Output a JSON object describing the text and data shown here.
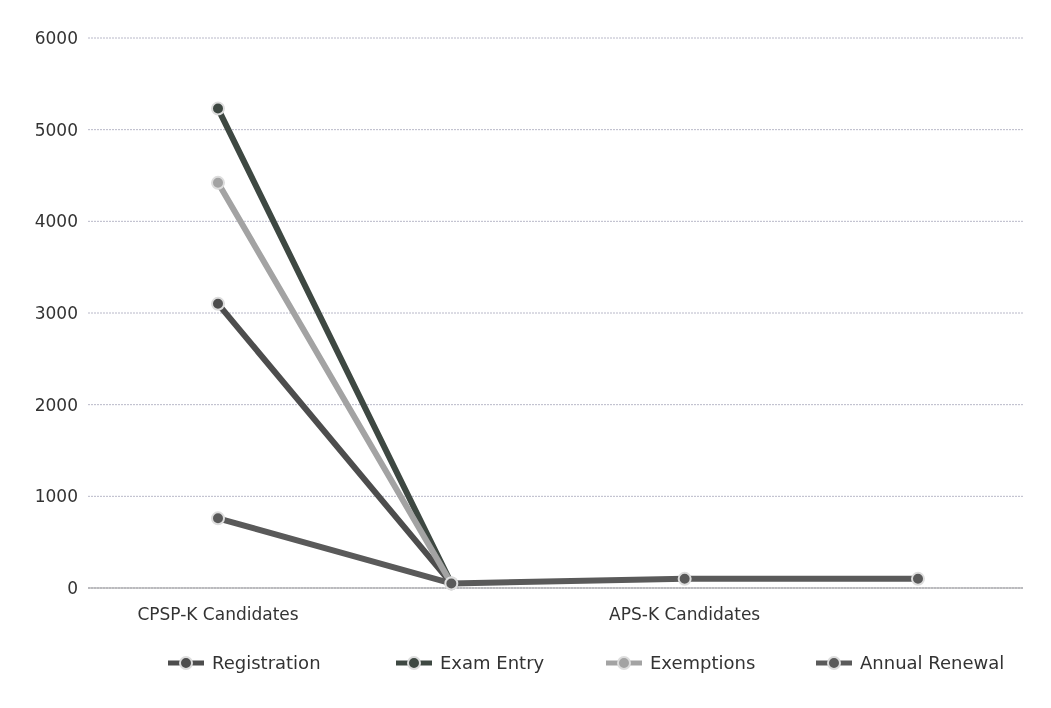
{
  "chart_data": {
    "type": "line",
    "categories": [
      "CPSP-K Candidates",
      null,
      "APS-K Candidates",
      null
    ],
    "series": [
      {
        "name": "Registration",
        "color": "#4d4d4d",
        "values": [
          3100,
          50,
          null,
          null
        ]
      },
      {
        "name": "Exam Entry",
        "color": "#3e4842",
        "values": [
          5230,
          50,
          null,
          null
        ]
      },
      {
        "name": "Exemptions",
        "color": "#a3a3a3",
        "values": [
          4420,
          50,
          null,
          null
        ]
      },
      {
        "name": "Annual Renewal",
        "color": "#5a5a5a",
        "values": [
          760,
          50,
          100,
          100
        ]
      }
    ],
    "ylim": [
      0,
      6000
    ],
    "yticks": [
      0,
      1000,
      2000,
      3000,
      4000,
      5000,
      6000
    ],
    "grid": "y",
    "legend": "bottom",
    "marker": "circle",
    "line_style": "solid"
  }
}
